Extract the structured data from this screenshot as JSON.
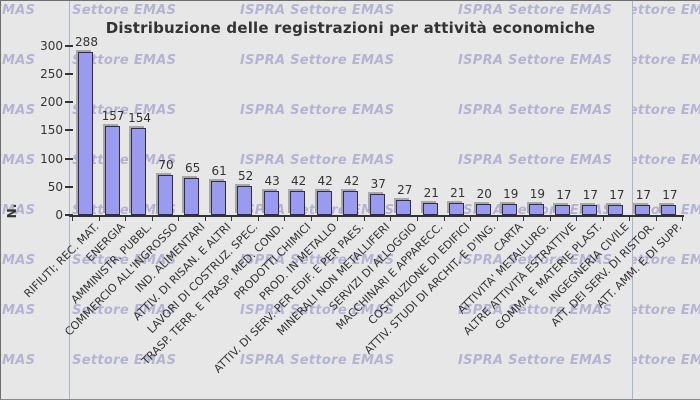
{
  "title": "Distribuzione delle registrazioni per attività economiche",
  "watermark": {
    "text": "ISPRA Settore EMAS"
  },
  "colors": {
    "background": "#e7e7e7",
    "bar_fill": "#9a9af0",
    "bar_border": "#2e2e3e",
    "bar_shadow": "#a8a8a8",
    "axis": "#333333",
    "text": "#333333",
    "watermark": "#b4b4d2",
    "divider": "#a8b4c8"
  },
  "chart_data": {
    "type": "bar",
    "title": "Distribuzione delle registrazioni per attività economiche",
    "xlabel": "",
    "ylabel": "N.",
    "ylim": [
      0,
      300
    ],
    "yticks": [
      0,
      50,
      100,
      150,
      200,
      250,
      300
    ],
    "grid": false,
    "legend": "none",
    "value_labels": true,
    "categories": [
      "RIFIUTI; REC. MAT.",
      "ENERGIA",
      "AMMINISTR. PUBBL.",
      "COMMERCIO ALL'INGROSSO",
      "IND. ALIMENTARI",
      "ATTIV. DI RISAN. E ALTRI",
      "LAVORI DI COSTRUZ. SPEC.",
      "TRASP. TERR. E TRASP. MED. COND.",
      "PRODOTTI CHIMICI",
      "PROD. IN METALLO",
      "ATTIV. DI SERV. PER EDIF. E PER PAES.",
      "MINERALI NON METALLIFERI",
      "SERVIZI DI ALLOGGIO",
      "MACCHINARI E APPARECC.",
      "COSTRUZIONE DI EDIFICI",
      "ATTIV. STUDI DI ARCHIT. E D'ING.",
      "CARTA",
      "ATTIVITA' METALLURG.",
      "ALTRE ATTIVITÀ ESTRATTIVE",
      "GOMMA E MATERIE PLAST.",
      "INGEGNERIA CIVILE",
      "ATT. DEI SERV. DI RISTOR.",
      "ATT. AMM. E DI SUPP."
    ],
    "values": [
      288,
      157,
      154,
      70,
      65,
      61,
      52,
      43,
      42,
      42,
      42,
      37,
      27,
      21,
      21,
      20,
      19,
      19,
      17,
      17,
      17,
      17,
      17
    ]
  }
}
